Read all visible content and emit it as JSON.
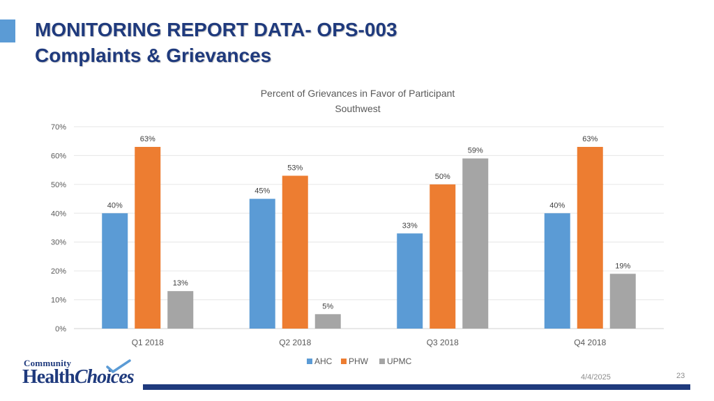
{
  "slide": {
    "title_line1": "MONITORING REPORT DATA- OPS-003",
    "title_line2": "Complaints & Grievances",
    "date": "4/4/2025",
    "page_number": "23"
  },
  "logo": {
    "top_text": "Community",
    "main_text_1": "Health",
    "main_text_2": "Choices"
  },
  "colors": {
    "title": "#1f3a7d",
    "accent": "#5b9bd5",
    "AHC": "#5b9bd5",
    "PHW": "#ed7d31",
    "UPMC": "#a5a5a5"
  },
  "chart_data": {
    "type": "bar",
    "title": "Percent of Grievances in Favor of Participant",
    "subtitle": "Southwest",
    "categories": [
      "Q1 2018",
      "Q2 2018",
      "Q3 2018",
      "Q4 2018"
    ],
    "series": [
      {
        "name": "AHC",
        "values": [
          40,
          45,
          33,
          40
        ],
        "labels": [
          "40%",
          "45%",
          "33%",
          "40%"
        ]
      },
      {
        "name": "PHW",
        "values": [
          63,
          53,
          50,
          63
        ],
        "labels": [
          "63%",
          "53%",
          "50%",
          "63%"
        ]
      },
      {
        "name": "UPMC",
        "values": [
          13,
          5,
          59,
          19
        ],
        "labels": [
          "13%",
          "5%",
          "59%",
          "19%"
        ]
      }
    ],
    "yticks": [
      "0%",
      "10%",
      "20%",
      "30%",
      "40%",
      "50%",
      "60%",
      "70%"
    ],
    "ylim": [
      0,
      70
    ],
    "xlabel": "",
    "ylabel": "",
    "grid": true,
    "legend": "bottom-center"
  }
}
